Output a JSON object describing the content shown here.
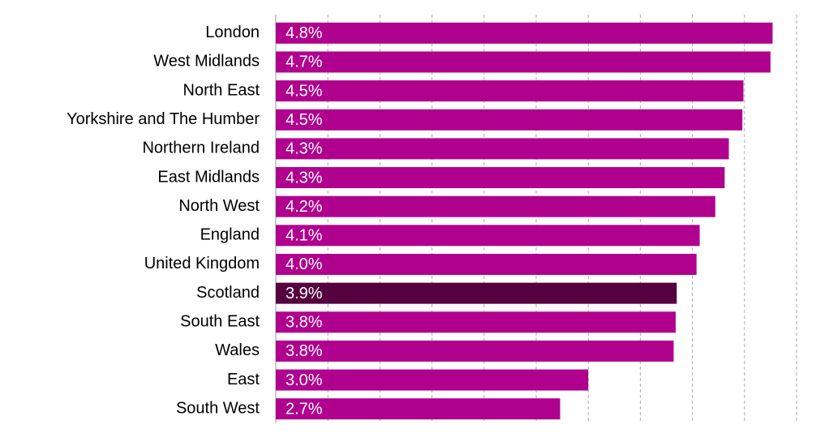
{
  "chart_data": {
    "type": "bar",
    "orientation": "horizontal",
    "categories": [
      "London",
      "West Midlands",
      "North East",
      "Yorkshire and The Humber",
      "Northern Ireland",
      "East Midlands",
      "North West",
      "England",
      "United Kingdom",
      "Scotland",
      "South East",
      "Wales",
      "East",
      "South West"
    ],
    "values": [
      4.77,
      4.75,
      4.49,
      4.48,
      4.35,
      4.31,
      4.22,
      4.07,
      4.04,
      3.85,
      3.84,
      3.82,
      3.0,
      2.73
    ],
    "value_labels": [
      "4.8%",
      "4.7%",
      "4.5%",
      "4.5%",
      "4.3%",
      "4.3%",
      "4.2%",
      "4.1%",
      "4.0%",
      "3.9%",
      "3.8%",
      "3.8%",
      "3.0%",
      "2.7%"
    ],
    "colors": [
      "#b0008e",
      "#b0008e",
      "#b0008e",
      "#b0008e",
      "#b0008e",
      "#b0008e",
      "#b0008e",
      "#b0008e",
      "#b0008e",
      "#55003f",
      "#b0008e",
      "#b0008e",
      "#b0008e",
      "#b0008e"
    ],
    "xlim": [
      0,
      5
    ],
    "xticks": [
      0,
      0.5,
      1,
      1.5,
      2,
      2.5,
      3,
      3.5,
      4,
      4.5,
      5
    ],
    "grid": true
  }
}
